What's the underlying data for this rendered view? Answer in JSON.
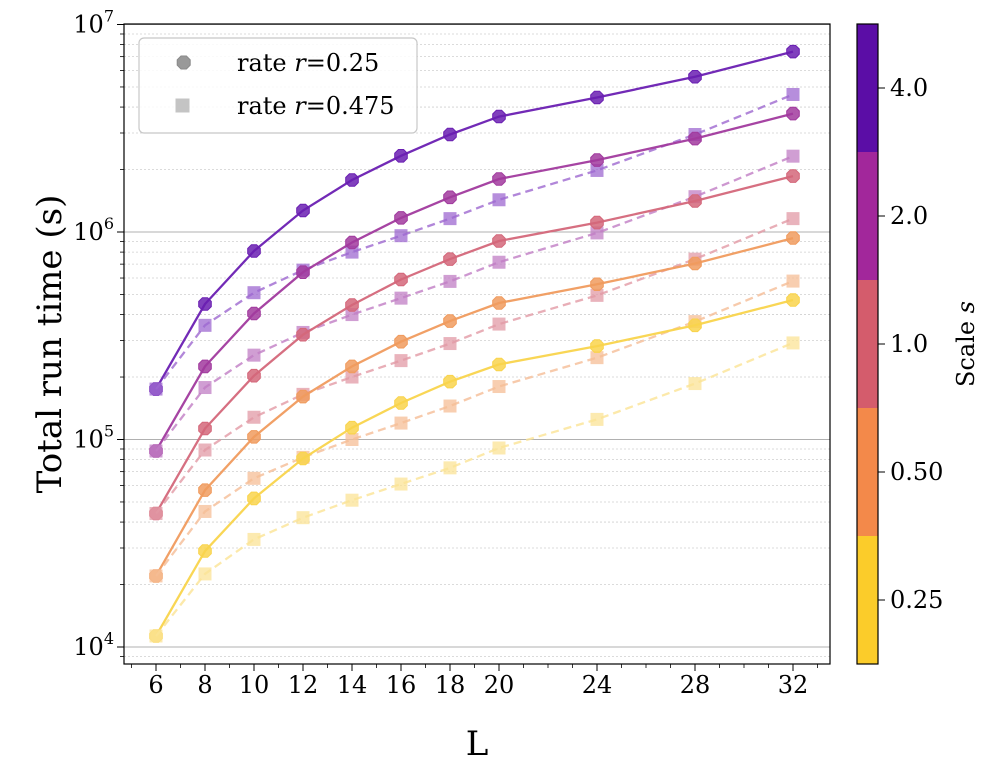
{
  "chart_data": {
    "type": "line",
    "xlabel": "L",
    "ylabel": "Total run time (s)",
    "yscale": "log",
    "ylim": [
      8000,
      10000000
    ],
    "xlim": [
      4.8,
      33.2
    ],
    "grid": "horizontal (major and minor)",
    "x": [
      6,
      8,
      10,
      12,
      14,
      16,
      18,
      20,
      24,
      28,
      32
    ],
    "x_tick_labels": [
      "6",
      "8",
      "10",
      "12",
      "14",
      "16",
      "18",
      "20",
      "24",
      "28",
      "32"
    ],
    "y_ticks": [
      {
        "value": 10000,
        "base": "10",
        "exp": "4"
      },
      {
        "value": 100000,
        "base": "10",
        "exp": "5"
      },
      {
        "value": 1000000,
        "base": "10",
        "exp": "6"
      },
      {
        "value": 10000000,
        "base": "10",
        "exp": "7"
      }
    ],
    "legend": {
      "placement": "upper-left",
      "entries": [
        {
          "label_prefix": "rate ",
          "label_var": "r",
          "label_value": "=0.25",
          "marker": "octagon",
          "linestyle": "solid"
        },
        {
          "label_prefix": "rate ",
          "label_var": "r",
          "label_value": "=0.475",
          "marker": "square",
          "linestyle": "dashed"
        }
      ]
    },
    "colorbar": {
      "label_prefix": "Scale ",
      "label_var": "s",
      "levels": [
        {
          "label": "0.25",
          "color": "#fbcc2a"
        },
        {
          "label": "0.50",
          "color": "#f3894a"
        },
        {
          "label": "1.0",
          "color": "#d45c6c"
        },
        {
          "label": "2.0",
          "color": "#a2279b"
        },
        {
          "label": "4.0",
          "color": "#5b0da6"
        }
      ]
    },
    "series": [
      {
        "name": "r=0.25, s=4.0",
        "rate": "0.25",
        "scale": "4.0",
        "color": "#6a1fb2",
        "values": [
          175000,
          450000,
          810000,
          1270000,
          1780000,
          2330000,
          2950000,
          3600000,
          4450000,
          5600000,
          7400000
        ]
      },
      {
        "name": "r=0.475, s=4.0",
        "rate": "0.475",
        "scale": "4.0",
        "color": "#9e68d0",
        "values": [
          175000,
          355000,
          510000,
          655000,
          800000,
          960000,
          1160000,
          1430000,
          1980000,
          2950000,
          4600000
        ]
      },
      {
        "name": "r=0.25, s=2.0",
        "rate": "0.25",
        "scale": "2.0",
        "color": "#a13a9e",
        "values": [
          88000,
          225000,
          405000,
          640000,
          890000,
          1170000,
          1470000,
          1800000,
          2220000,
          2820000,
          3720000
        ]
      },
      {
        "name": "r=0.475, s=2.0",
        "rate": "0.475",
        "scale": "2.0",
        "color": "#c07dc4",
        "values": [
          88000,
          178000,
          255000,
          328000,
          400000,
          480000,
          578000,
          715000,
          990000,
          1480000,
          2320000
        ]
      },
      {
        "name": "r=0.25, s=1.0",
        "rate": "0.25",
        "scale": "1.0",
        "color": "#d4677a",
        "values": [
          44000,
          113000,
          203000,
          320000,
          445000,
          590000,
          740000,
          905000,
          1110000,
          1410000,
          1860000
        ]
      },
      {
        "name": "r=0.475, s=1.0",
        "rate": "0.475",
        "scale": "1.0",
        "color": "#e29aa5",
        "values": [
          44000,
          89000,
          128000,
          165000,
          200000,
          240000,
          290000,
          360000,
          495000,
          740000,
          1160000
        ]
      },
      {
        "name": "r=0.25, s=0.50",
        "rate": "0.25",
        "scale": "0.50",
        "color": "#f09b5e",
        "values": [
          22000,
          57000,
          103000,
          161000,
          225000,
          296000,
          372000,
          455000,
          560000,
          705000,
          935000
        ]
      },
      {
        "name": "r=0.475, s=0.50",
        "rate": "0.475",
        "scale": "0.50",
        "color": "#f5bd96",
        "values": [
          22000,
          45000,
          65000,
          82000,
          100000,
          120000,
          145000,
          180000,
          248000,
          370000,
          580000
        ]
      },
      {
        "name": "r=0.25, s=0.25",
        "rate": "0.25",
        "scale": "0.25",
        "color": "#f9d44c",
        "values": [
          11300,
          29000,
          52000,
          81000,
          114000,
          150000,
          190000,
          230000,
          282000,
          355000,
          470000
        ]
      },
      {
        "name": "r=0.475, s=0.25",
        "rate": "0.475",
        "scale": "0.25",
        "color": "#fbe395",
        "values": [
          11300,
          22500,
          33000,
          42000,
          51000,
          61000,
          73000,
          91000,
          125000,
          186000,
          292000
        ]
      }
    ]
  }
}
